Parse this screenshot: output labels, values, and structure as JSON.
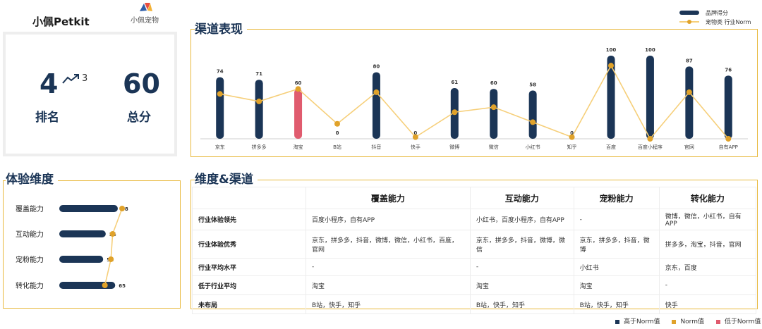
{
  "header": {
    "brand_name": "小佩Petkit",
    "logo_text": "小佩宠物"
  },
  "score_card": {
    "rank_value": "4",
    "rank_delta": "3",
    "rank_label": "排名",
    "total_value": "60",
    "total_label": "总分"
  },
  "colors": {
    "navy": "#1b3556",
    "gold": "#e0a22a",
    "norm_line": "#f6cf7a",
    "red": "#e05b6e",
    "border": "#e8b93d"
  },
  "icons": {
    "trend": "trend-up-icon"
  },
  "channel_section": {
    "title": "渠道表现",
    "legend_brand": "品牌得分",
    "legend_norm": "宠物类 行业Norm"
  },
  "experience_section": {
    "title": "体验维度"
  },
  "matrix_section": {
    "title": "维度&渠道",
    "columns": [
      "覆盖能力",
      "互动能力",
      "宠粉能力",
      "转化能力"
    ],
    "rows": [
      {
        "label": "行业体验领先",
        "cells": [
          "百度小程序，自有APP",
          "小红书，百度小程序，自有APP",
          "-",
          "微博，微信，小红书，自有APP"
        ]
      },
      {
        "label": "行业体验优秀",
        "cells": [
          "京东，拼多多，抖音，微博，微信，小红书，百度，官网",
          "京东，拼多多，抖音，微博，微信",
          "京东，拼多多，抖音，微博",
          "拼多多，淘宝，抖音，官网"
        ]
      },
      {
        "label": "行业平均水平",
        "cells": [
          "-",
          "-",
          "小红书",
          "京东，百度"
        ]
      },
      {
        "label": "低于行业平均",
        "cells": [
          "淘宝",
          "淘宝",
          "淘宝",
          "-"
        ]
      },
      {
        "label": "未布局",
        "cells": [
          "B站，快手，知乎",
          "B站，快手，知乎",
          "B站，快手，知乎",
          "快手"
        ]
      }
    ]
  },
  "bottom_legend": {
    "above": "高于Norm值",
    "norm": "Norm值",
    "below": "低于Norm值"
  },
  "chart_data": [
    {
      "type": "bar",
      "categories": [
        "京东",
        "拼多多",
        "淘宝",
        "B站",
        "抖音",
        "快手",
        "微博",
        "微信",
        "小红书",
        "知乎",
        "百度",
        "百度小程序",
        "官网",
        "自有APP"
      ],
      "series": [
        {
          "name": "品牌得分",
          "values": [
            74,
            71,
            60,
            0,
            80,
            0,
            61,
            60,
            58,
            0,
            100,
            100,
            87,
            76
          ],
          "labels": [
            "74",
            "71",
            "60",
            "0",
            "80",
            "0",
            "61",
            "60",
            "58",
            "0",
            "100",
            "100",
            "87",
            "76"
          ]
        },
        {
          "name": "宠物类 行业Norm",
          "type": "line",
          "values": [
            54,
            45,
            60,
            18,
            56,
            2,
            32,
            38,
            20,
            2,
            88,
            0,
            56,
            0
          ]
        }
      ],
      "below_norm": [
        false,
        false,
        true,
        false,
        false,
        false,
        false,
        false,
        false,
        false,
        false,
        false,
        false,
        false
      ],
      "ylim": [
        0,
        100
      ],
      "legend": "top-right"
    },
    {
      "type": "bar",
      "orientation": "horizontal",
      "categories": [
        "覆盖能力",
        "互动能力",
        "宠粉能力",
        "转化能力"
      ],
      "series": [
        {
          "values": [
            68,
            54,
            51,
            65
          ],
          "labels": [
            "68",
            "54",
            "51",
            "65"
          ]
        },
        {
          "type": "line",
          "values": [
            73,
            62,
            60,
            53
          ]
        }
      ],
      "xlim": [
        0,
        100
      ]
    }
  ]
}
